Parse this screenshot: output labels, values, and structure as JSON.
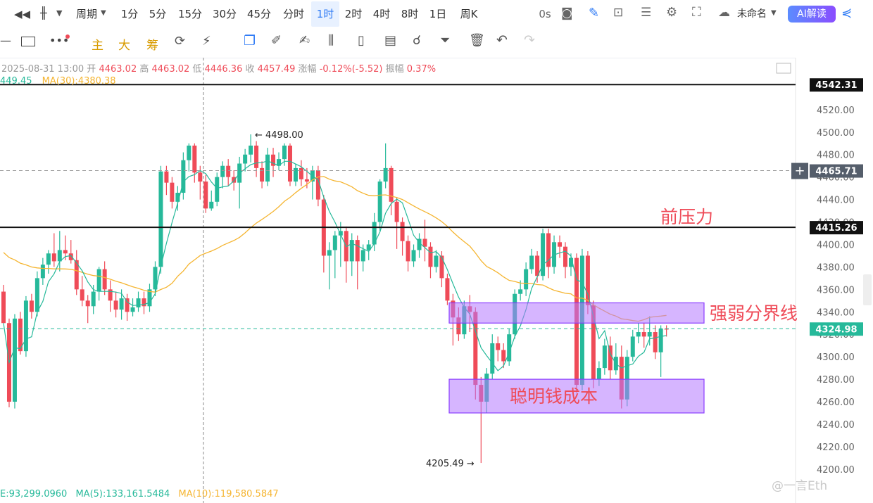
{
  "toolbar": {
    "period_label": "周期",
    "intervals": [
      "1分",
      "5分",
      "15分",
      "30分",
      "45分",
      "分时",
      "1时",
      "2时",
      "4时",
      "8时",
      "1日",
      "周K"
    ],
    "active_interval": "1时",
    "countdown": "0s",
    "layout_name": "未命名",
    "ai_button": "AI解读",
    "draw_tools": [
      "主",
      "大",
      "筹"
    ]
  },
  "status": {
    "time": "2025-08-31 13:00",
    "open_label": "开",
    "open": "4463.02",
    "high_label": "高",
    "high": "4463.02",
    "low_label": "低",
    "low": "4446.36",
    "close_label": "收",
    "close": "4457.49",
    "change_label": "涨幅",
    "change": "-0.12%(-5.52)",
    "amp_label": "振幅",
    "amp": "0.37%"
  },
  "ma": {
    "ma5_text": "449.45",
    "ma30_text": "MA(30):4380.38",
    "ma5_color": "#26b99a",
    "ma30_color": "#f5b531"
  },
  "volume": {
    "vol_text": "E:93,299.0960",
    "ma5_text": "MA(5):133,161.5484",
    "ma10_text": "MA(10):119,580.5847"
  },
  "watermark": "@一言Eth",
  "chart_data": {
    "type": "candlestick",
    "ylim": [
      4193,
      4560
    ],
    "y_ticks": [
      4200,
      4220,
      4240,
      4260,
      4280,
      4300,
      4320,
      4340,
      4360,
      4380,
      4400,
      4420,
      4440,
      4460,
      4480,
      4500,
      4520
    ],
    "y_tick_labels": [
      "4200.00",
      "4220.00",
      "4240.00",
      "4260.00",
      "4280.00",
      "4300.00",
      "4320.00",
      "4340.00",
      "4360.00",
      "4380.00",
      "4400.00",
      "4420.00",
      "4440.00",
      "4460.00",
      "4480.00",
      "4500.00",
      "4520.00"
    ],
    "up_color": "#26b99a",
    "down_color": "#ef4b58",
    "candles": [
      [
        4358,
        4330,
        4364,
        4330
      ],
      [
        4330,
        4260,
        4334,
        4255
      ],
      [
        4260,
        4334,
        4338,
        4254
      ],
      [
        4334,
        4305,
        4340,
        4302
      ],
      [
        4305,
        4350,
        4354,
        4300
      ],
      [
        4350,
        4340,
        4356,
        4334
      ],
      [
        4340,
        4370,
        4376,
        4336
      ],
      [
        4370,
        4382,
        4388,
        4364
      ],
      [
        4382,
        4392,
        4395,
        4374
      ],
      [
        4392,
        4385,
        4410,
        4380
      ],
      [
        4385,
        4395,
        4412,
        4376
      ],
      [
        4395,
        4392,
        4408,
        4386
      ],
      [
        4392,
        4386,
        4404,
        4383
      ],
      [
        4386,
        4360,
        4395,
        4355
      ],
      [
        4360,
        4350,
        4372,
        4345
      ],
      [
        4350,
        4345,
        4355,
        4330
      ],
      [
        4345,
        4358,
        4364,
        4338
      ],
      [
        4358,
        4378,
        4380,
        4350
      ],
      [
        4378,
        4360,
        4385,
        4355
      ],
      [
        4360,
        4350,
        4368,
        4340
      ],
      [
        4350,
        4342,
        4358,
        4335
      ],
      [
        4342,
        4352,
        4360,
        4333
      ],
      [
        4352,
        4340,
        4356,
        4332
      ],
      [
        4340,
        4344,
        4352,
        4336
      ],
      [
        4344,
        4352,
        4358,
        4340
      ],
      [
        4352,
        4345,
        4358,
        4338
      ],
      [
        4345,
        4360,
        4365,
        4340
      ],
      [
        4360,
        4380,
        4385,
        4354
      ],
      [
        4380,
        4465,
        4470,
        4374
      ],
      [
        4465,
        4455,
        4470,
        4444
      ],
      [
        4455,
        4438,
        4460,
        4432
      ],
      [
        4438,
        4446,
        4452,
        4430
      ],
      [
        4446,
        4475,
        4482,
        4440
      ],
      [
        4475,
        4488,
        4490,
        4465
      ],
      [
        4488,
        4464,
        4490,
        4455
      ],
      [
        4464,
        4456,
        4470,
        4440
      ],
      [
        4456,
        4432,
        4462,
        4428
      ],
      [
        4432,
        4438,
        4448,
        4430
      ],
      [
        4438,
        4460,
        4464,
        4434
      ],
      [
        4460,
        4470,
        4474,
        4450
      ],
      [
        4470,
        4460,
        4476,
        4452
      ],
      [
        4460,
        4455,
        4466,
        4448
      ],
      [
        4455,
        4472,
        4478,
        4432
      ],
      [
        4472,
        4480,
        4485,
        4465
      ],
      [
        4480,
        4488,
        4498,
        4473
      ],
      [
        4488,
        4468,
        4492,
        4460
      ],
      [
        4468,
        4456,
        4474,
        4450
      ],
      [
        4456,
        4480,
        4486,
        4452
      ],
      [
        4480,
        4470,
        4486,
        4460
      ],
      [
        4470,
        4476,
        4482,
        4466
      ],
      [
        4476,
        4488,
        4490,
        4470
      ],
      [
        4488,
        4456,
        4490,
        4452
      ],
      [
        4456,
        4468,
        4472,
        4452
      ],
      [
        4468,
        4458,
        4475,
        4452
      ],
      [
        4458,
        4456,
        4468,
        4450
      ],
      [
        4456,
        4466,
        4470,
        4440
      ],
      [
        4466,
        4440,
        4470,
        4434
      ],
      [
        4440,
        4390,
        4444,
        4375
      ],
      [
        4390,
        4395,
        4402,
        4360
      ],
      [
        4395,
        4408,
        4412,
        4370
      ],
      [
        4408,
        4412,
        4420,
        4380
      ],
      [
        4412,
        4385,
        4416,
        4366
      ],
      [
        4385,
        4404,
        4410,
        4372
      ],
      [
        4404,
        4385,
        4408,
        4360
      ],
      [
        4385,
        4395,
        4400,
        4376
      ],
      [
        4395,
        4400,
        4404,
        4386
      ],
      [
        4400,
        4420,
        4428,
        4394
      ],
      [
        4420,
        4456,
        4458,
        4412
      ],
      [
        4456,
        4468,
        4490,
        4450
      ],
      [
        4468,
        4438,
        4470,
        4426
      ],
      [
        4438,
        4420,
        4442,
        4396
      ],
      [
        4420,
        4403,
        4424,
        4390
      ],
      [
        4403,
        4385,
        4408,
        4376
      ],
      [
        4385,
        4395,
        4400,
        4380
      ],
      [
        4395,
        4405,
        4410,
        4388
      ],
      [
        4405,
        4398,
        4422,
        4385
      ],
      [
        4398,
        4380,
        4402,
        4370
      ],
      [
        4380,
        4390,
        4395,
        4375
      ],
      [
        4390,
        4370,
        4394,
        4362
      ],
      [
        4370,
        4350,
        4374,
        4346
      ],
      [
        4350,
        4335,
        4356,
        4310
      ],
      [
        4335,
        4320,
        4344,
        4314
      ],
      [
        4320,
        4345,
        4350,
        4316
      ],
      [
        4345,
        4340,
        4355,
        4322
      ],
      [
        4340,
        4275,
        4344,
        4262
      ],
      [
        4275,
        4260,
        4282,
        4205.49
      ],
      [
        4260,
        4285,
        4290,
        4250
      ],
      [
        4285,
        4312,
        4320,
        4280
      ],
      [
        4312,
        4306,
        4318,
        4296
      ],
      [
        4306,
        4296,
        4312,
        4290
      ],
      [
        4296,
        4320,
        4325,
        4292
      ],
      [
        4320,
        4356,
        4360,
        4316
      ],
      [
        4356,
        4360,
        4368,
        4350
      ],
      [
        4360,
        4378,
        4384,
        4354
      ],
      [
        4378,
        4390,
        4396,
        4374
      ],
      [
        4390,
        4372,
        4394,
        4366
      ],
      [
        4372,
        4410,
        4414,
        4368
      ],
      [
        4410,
        4380,
        4414,
        4370
      ],
      [
        4380,
        4402,
        4408,
        4374
      ],
      [
        4402,
        4398,
        4408,
        4388
      ],
      [
        4398,
        4380,
        4402,
        4370
      ],
      [
        4380,
        4388,
        4392,
        4372
      ],
      [
        4388,
        4275,
        4392,
        4268
      ],
      [
        4275,
        4390,
        4396,
        4270
      ],
      [
        4390,
        4346,
        4394,
        4338
      ],
      [
        4346,
        4280,
        4350,
        4272
      ],
      [
        4280,
        4290,
        4296,
        4274
      ],
      [
        4290,
        4310,
        4316,
        4284
      ],
      [
        4310,
        4288,
        4318,
        4280
      ],
      [
        4288,
        4300,
        4312,
        4284
      ],
      [
        4300,
        4262,
        4310,
        4254
      ],
      [
        4262,
        4300,
        4306,
        4256
      ],
      [
        4300,
        4318,
        4324,
        4296
      ],
      [
        4318,
        4322,
        4330,
        4312
      ],
      [
        4322,
        4318,
        4330,
        4308
      ],
      [
        4318,
        4322,
        4336,
        4310
      ],
      [
        4322,
        4304,
        4328,
        4298
      ],
      [
        4304,
        4325,
        4328,
        4282
      ],
      [
        4325,
        4324.98,
        4328,
        4318
      ]
    ],
    "levels": [
      {
        "value": 4542.31,
        "label": "4542.31",
        "style": "solid",
        "color": "#111111"
      },
      {
        "value": 4415.26,
        "label": "4415.26",
        "style": "solid",
        "color": "#111111"
      },
      {
        "value": 4465.71,
        "label": "4465.71",
        "style": "dashed",
        "color": "#9a9a9a"
      },
      {
        "value": 4324.98,
        "label": "4324.98",
        "style": "dashed",
        "color": "#26b99a"
      }
    ],
    "zones": [
      {
        "low": 4330,
        "high": 4348,
        "label": "强弱分界线"
      },
      {
        "low": 4250,
        "high": 4280,
        "label": "聪明钱成本"
      }
    ],
    "annotations": [
      {
        "text": "前压力"
      },
      {
        "text": "4498.00"
      },
      {
        "text": "4205.49"
      }
    ]
  }
}
